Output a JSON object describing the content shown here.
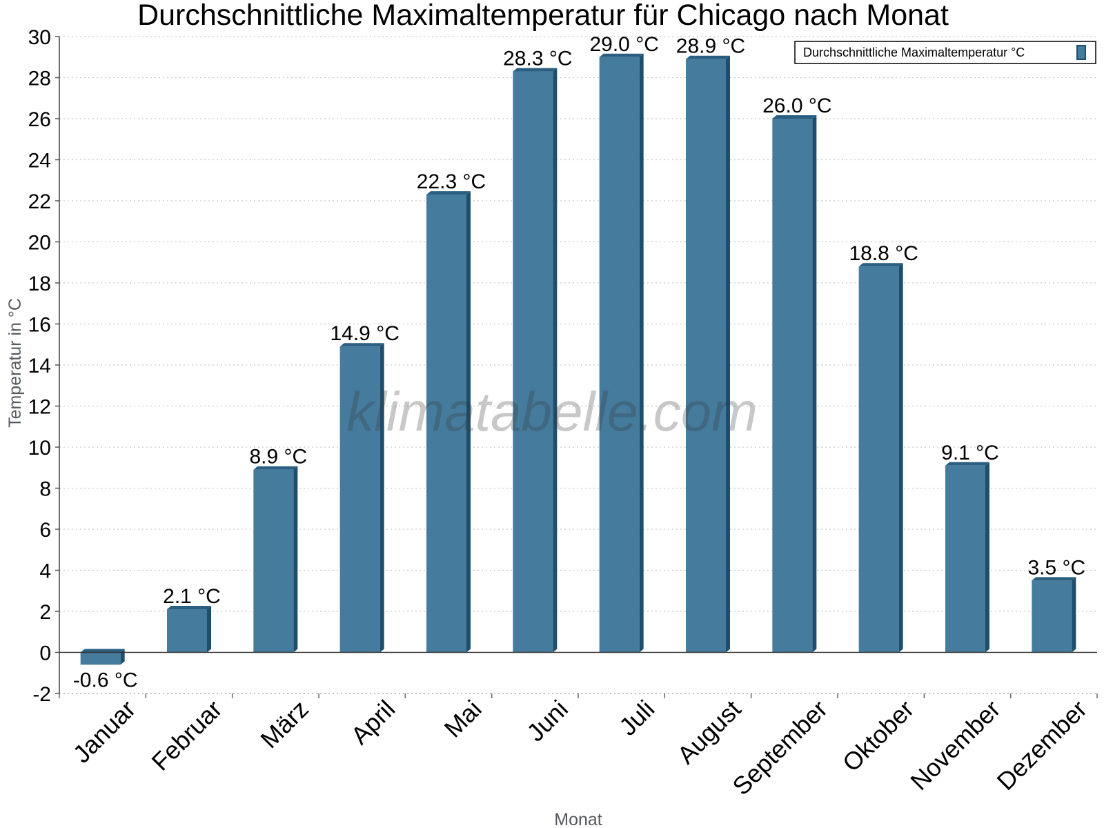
{
  "chart_data": {
    "type": "bar",
    "title": "Durchschnittliche Maximaltemperatur für Chicago nach Monat",
    "xlabel": "Monat",
    "ylabel": "Temperatur in °C",
    "ylim": [
      -2,
      30
    ],
    "ytick_step": 2,
    "grid": true,
    "legend_position": "top-right",
    "categories": [
      "Januar",
      "Februar",
      "März",
      "April",
      "Mai",
      "Juni",
      "Juli",
      "August",
      "September",
      "Oktober",
      "November",
      "Dezember"
    ],
    "series": [
      {
        "name": "Durchschnittliche Maximaltemperatur °C",
        "values": [
          -0.6,
          2.1,
          8.9,
          14.9,
          22.3,
          28.3,
          29.0,
          28.9,
          26.0,
          18.8,
          9.1,
          3.5
        ],
        "labels": [
          "-0.6 °C",
          "2.1 °C",
          "8.9 °C",
          "14.9 °C",
          "22.3 °C",
          "28.3 °C",
          "29.0 °C",
          "28.9 °C",
          "26.0 °C",
          "18.8 °C",
          "9.1 °C",
          "3.5 °C"
        ]
      }
    ],
    "colors": {
      "bar_face": "#457b9d",
      "bar_side": "#1d4e6e",
      "bar_top": "#2a5f82",
      "grid": "#c8c8c8"
    }
  },
  "watermark": "klimatabelle.com"
}
